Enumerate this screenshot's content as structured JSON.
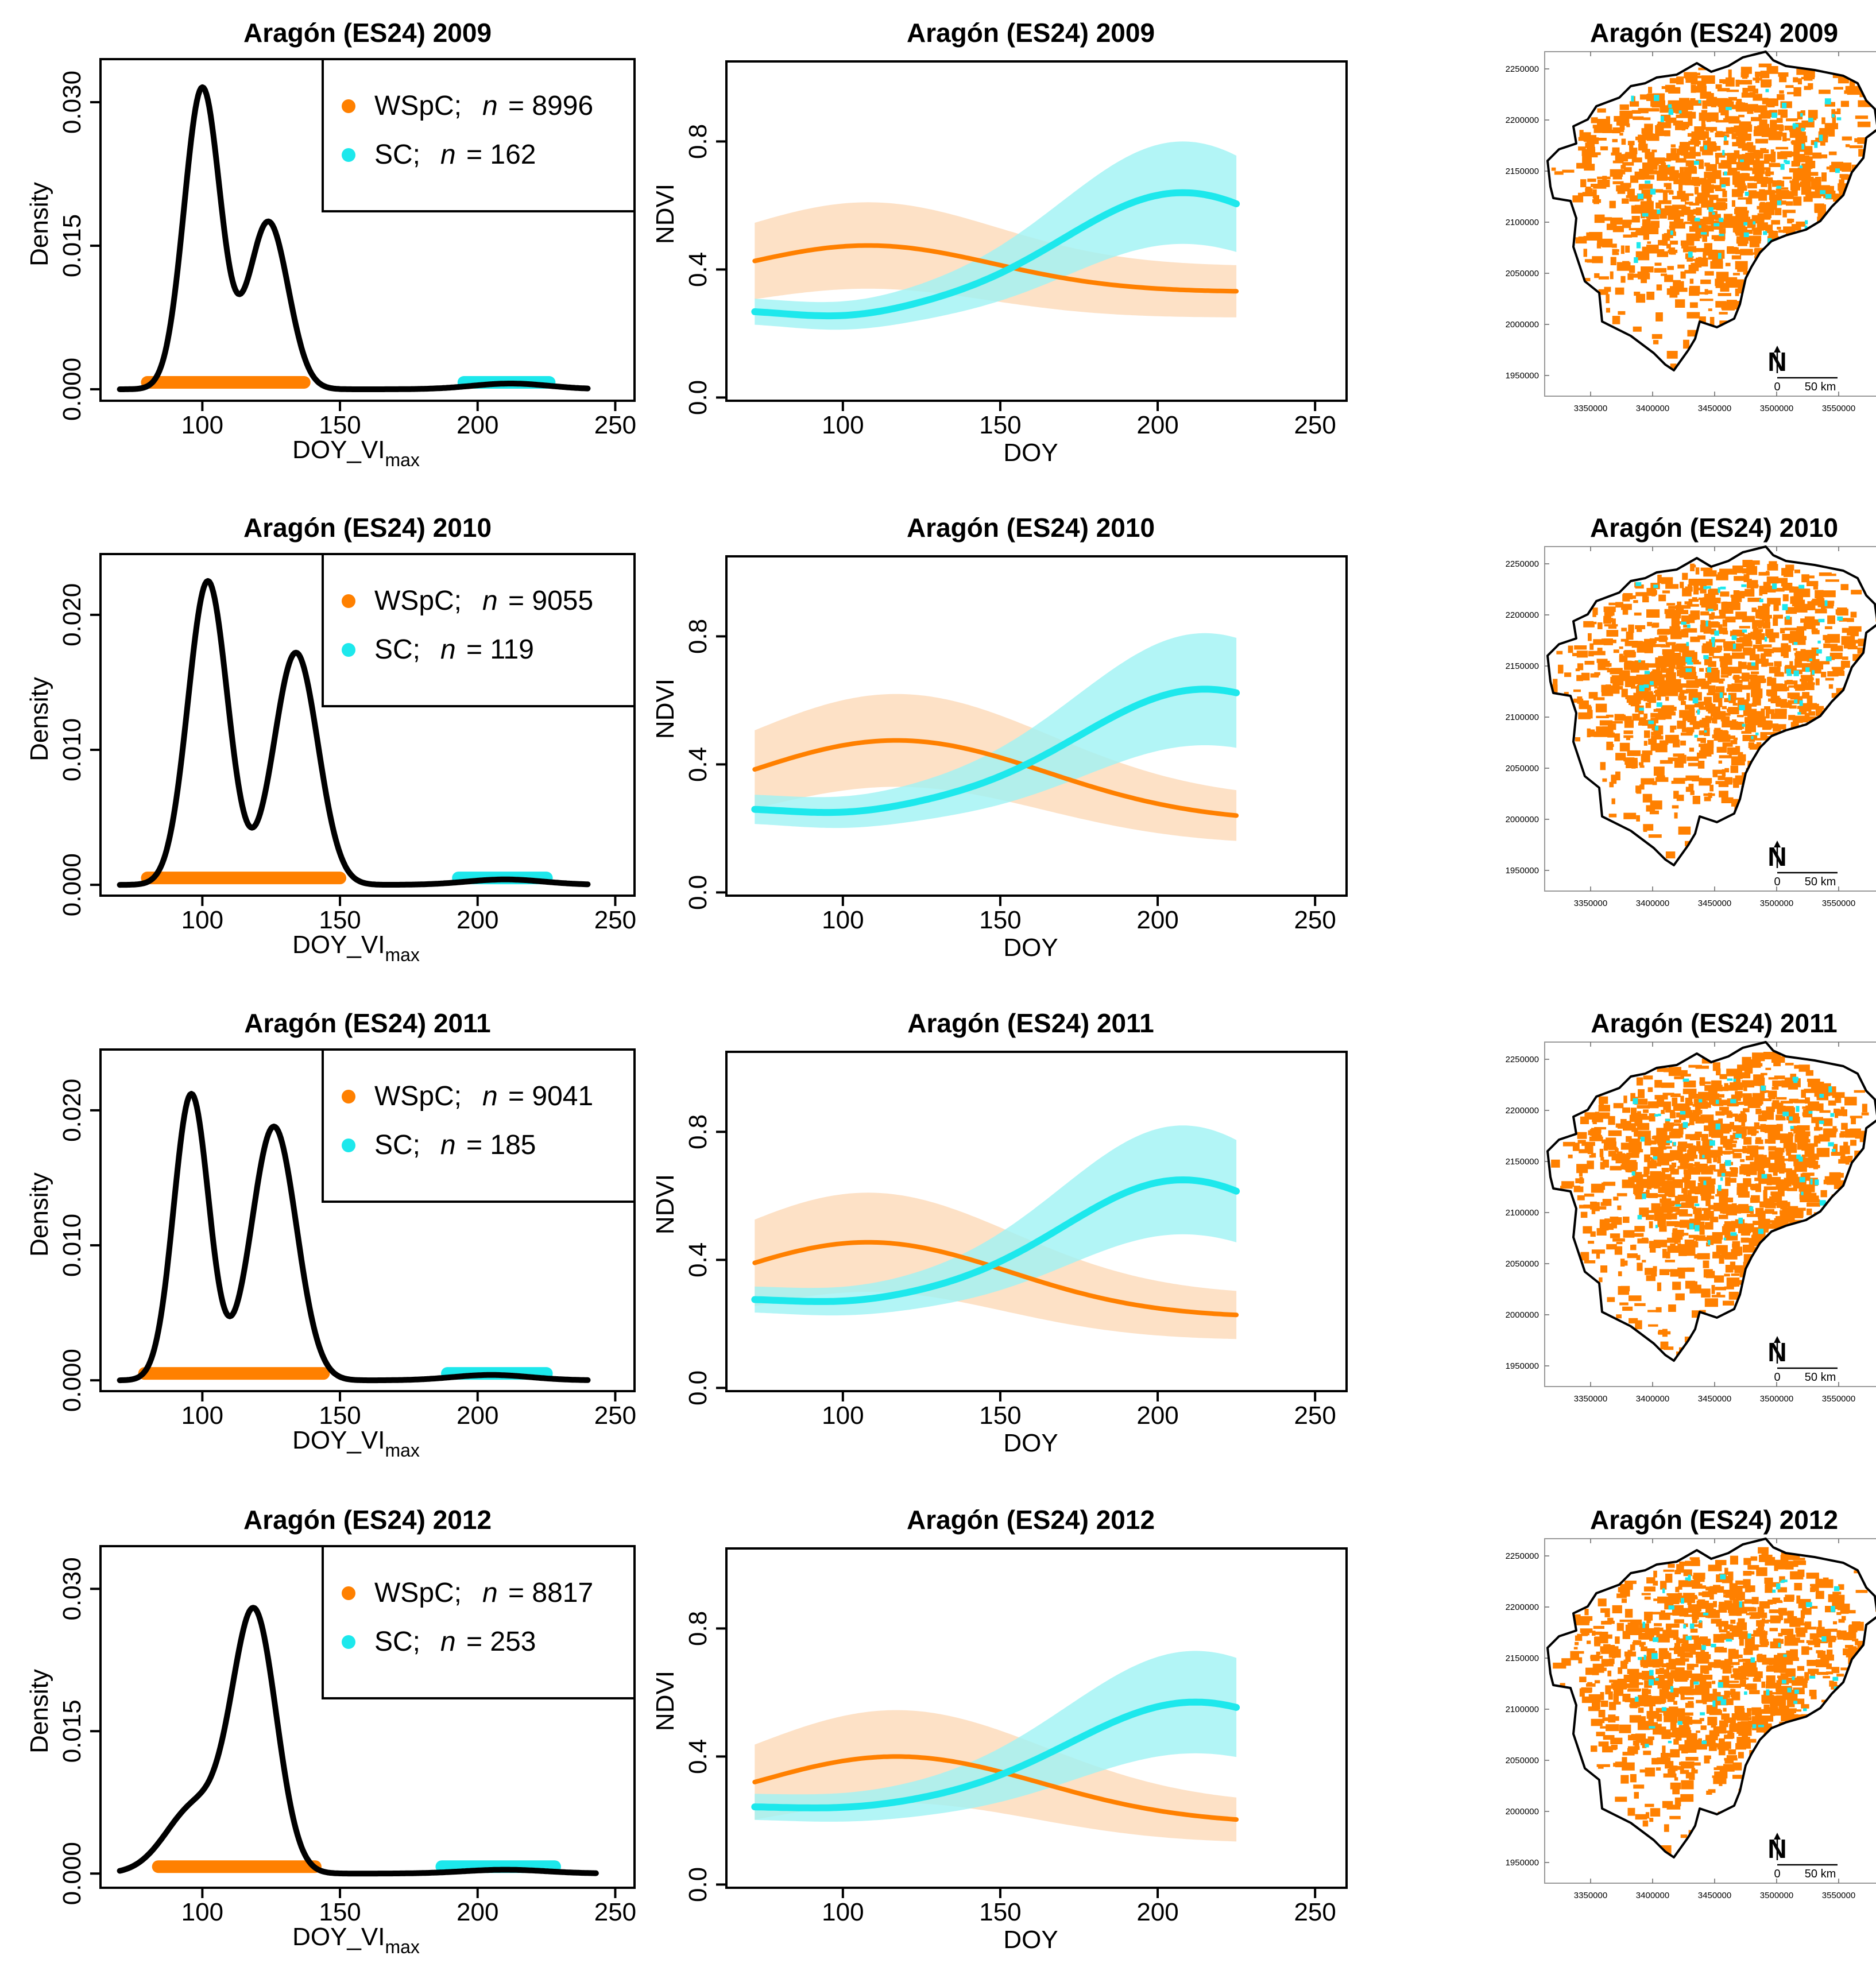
{
  "colors": {
    "wspc": "#ff8000",
    "sc": "#1de8ec",
    "wspc_band": "#fcd9b8",
    "sc_band": "#9ff3f4",
    "axis": "#000000"
  },
  "chart_data": [
    {
      "type": "line",
      "panel": "density",
      "title": "Aragón (ES24) 2009",
      "ylabel": "Density",
      "xlabel": "DOY_VI",
      "xlabel_sub": "max",
      "xlim": [
        63,
        257
      ],
      "ylim": [
        -0.0012,
        0.0345
      ],
      "xticks": [
        "100",
        "150",
        "200",
        "250"
      ],
      "yticks": [
        "0.000",
        "0.015",
        "0.030"
      ],
      "legend": [
        {
          "label": "WSpC;",
          "n_text": "n",
          "eq_text": "= 8996",
          "n": 8996
        },
        {
          "label": "SC;",
          "n_text": "n",
          "eq_text": "= 162",
          "n": 162
        }
      ],
      "density": {
        "x_range": [
          70,
          240
        ],
        "peaks": [
          [
            100,
            0.0315,
            6.6
          ],
          [
            124,
            0.0175,
            7.2
          ],
          [
            212,
            0.0006,
            14
          ]
        ]
      },
      "rug": [
        {
          "series": "WSpC",
          "from": 80,
          "to": 137
        },
        {
          "series": "SC",
          "from": 195,
          "to": 226
        }
      ]
    },
    {
      "type": "line",
      "panel": "ndvi",
      "title": "Aragón (ES24) 2009",
      "ylabel": "NDVI",
      "xlabel": "DOY",
      "xlim": [
        63,
        260
      ],
      "ylim": [
        -0.01,
        1.05
      ],
      "xticks": [
        "100",
        "150",
        "200",
        "250"
      ],
      "yticks": [
        "0.0",
        "0.4",
        "0.8"
      ],
      "series": [
        {
          "name": "WSpC",
          "x_range": [
            72,
            225
          ],
          "base": 0.33,
          "amp": 0.145,
          "center": 108,
          "sigma": 40,
          "band_base": 0.08,
          "band_amp": 0.055
        },
        {
          "name": "SC",
          "x_range": [
            72,
            225
          ],
          "base": 0.275,
          "amp": 0.365,
          "center": 208,
          "sigma": 38,
          "band_base": 0.04,
          "band_amp": 0.12,
          "dip": -0.025,
          "dip_center": 100,
          "dip_sigma": 18
        }
      ]
    },
    {
      "type": "map",
      "panel": "map",
      "title": "Aragón (ES24) 2009",
      "seed": 11,
      "yticks": [
        "2250000",
        "2200000",
        "2150000",
        "2100000",
        "2050000",
        "2000000",
        "1950000"
      ],
      "xticks": [
        "3350000",
        "3400000",
        "3450000",
        "3500000",
        "3550000"
      ],
      "north": "N",
      "scale_labels": [
        "0",
        "50 km"
      ]
    },
    {
      "type": "line",
      "panel": "density",
      "title": "Aragón (ES24) 2010",
      "ylabel": "Density",
      "xlabel": "DOY_VI",
      "xlabel_sub": "max",
      "xlim": [
        63,
        257
      ],
      "ylim": [
        -0.0008,
        0.0245
      ],
      "xticks": [
        "100",
        "150",
        "200",
        "250"
      ],
      "yticks": [
        "0.000",
        "0.010",
        "0.020"
      ],
      "legend": [
        {
          "label": "WSpC;",
          "n_text": "n",
          "eq_text": "= 9055",
          "n": 9055
        },
        {
          "label": "SC;",
          "n_text": "n",
          "eq_text": "= 119",
          "n": 119
        }
      ],
      "density": {
        "x_range": [
          70,
          240
        ],
        "peaks": [
          [
            102,
            0.0225,
            7.2
          ],
          [
            134,
            0.0172,
            8.0
          ],
          [
            210,
            0.0004,
            14
          ]
        ]
      },
      "rug": [
        {
          "series": "WSpC",
          "from": 80,
          "to": 150
        },
        {
          "series": "SC",
          "from": 193,
          "to": 225
        }
      ]
    },
    {
      "type": "line",
      "panel": "ndvi",
      "title": "Aragón (ES24) 2010",
      "ylabel": "NDVI",
      "xlabel": "DOY",
      "xlim": [
        63,
        260
      ],
      "ylim": [
        -0.01,
        1.05
      ],
      "xticks": [
        "100",
        "150",
        "200",
        "250"
      ],
      "yticks": [
        "0.0",
        "0.4",
        "0.8"
      ],
      "series": [
        {
          "name": "WSpC",
          "x_range": [
            72,
            225
          ],
          "base": 0.22,
          "amp": 0.255,
          "center": 117,
          "sigma": 48,
          "band_base": 0.07,
          "band_amp": 0.075
        },
        {
          "name": "SC",
          "x_range": [
            72,
            225
          ],
          "base": 0.265,
          "amp": 0.37,
          "center": 215,
          "sigma": 40,
          "band_base": 0.045,
          "band_amp": 0.13,
          "dip": -0.02,
          "dip_center": 100,
          "dip_sigma": 18
        }
      ]
    },
    {
      "type": "map",
      "panel": "map",
      "title": "Aragón (ES24) 2010",
      "seed": 23,
      "yticks": [
        "2250000",
        "2200000",
        "2150000",
        "2100000",
        "2050000",
        "2000000",
        "1950000"
      ],
      "xticks": [
        "3350000",
        "3400000",
        "3450000",
        "3500000",
        "3550000"
      ],
      "north": "N",
      "scale_labels": [
        "0",
        "50 km"
      ]
    },
    {
      "type": "line",
      "panel": "density",
      "title": "Aragón (ES24) 2011",
      "ylabel": "Density",
      "xlabel": "DOY_VI",
      "xlabel_sub": "max",
      "xlim": [
        63,
        257
      ],
      "ylim": [
        -0.0008,
        0.0245
      ],
      "xticks": [
        "100",
        "150",
        "200",
        "250"
      ],
      "yticks": [
        "0.000",
        "0.010",
        "0.020"
      ],
      "legend": [
        {
          "label": "WSpC;",
          "n_text": "n",
          "eq_text": "= 9041",
          "n": 9041
        },
        {
          "label": "SC;",
          "n_text": "n",
          "eq_text": "= 185",
          "n": 185
        }
      ],
      "density": {
        "x_range": [
          70,
          240
        ],
        "peaks": [
          [
            96,
            0.0212,
            6.4
          ],
          [
            126,
            0.0188,
            8.2
          ],
          [
            205,
            0.0004,
            14
          ]
        ]
      },
      "rug": [
        {
          "series": "WSpC",
          "from": 79,
          "to": 144
        },
        {
          "series": "SC",
          "from": 189,
          "to": 225
        }
      ]
    },
    {
      "type": "line",
      "panel": "ndvi",
      "title": "Aragón (ES24) 2011",
      "ylabel": "NDVI",
      "xlabel": "DOY",
      "xlim": [
        63,
        260
      ],
      "ylim": [
        -0.01,
        1.05
      ],
      "xticks": [
        "100",
        "150",
        "200",
        "250"
      ],
      "yticks": [
        "0.0",
        "0.4",
        "0.8"
      ],
      "series": [
        {
          "name": "WSpC",
          "x_range": [
            72,
            225
          ],
          "base": 0.22,
          "amp": 0.235,
          "center": 108,
          "sigma": 45,
          "band_base": 0.07,
          "band_amp": 0.085
        },
        {
          "name": "SC",
          "x_range": [
            72,
            225
          ],
          "base": 0.28,
          "amp": 0.37,
          "center": 208,
          "sigma": 38,
          "band_base": 0.04,
          "band_amp": 0.13,
          "dip": -0.015,
          "dip_center": 100,
          "dip_sigma": 18
        }
      ]
    },
    {
      "type": "map",
      "panel": "map",
      "title": "Aragón (ES24) 2011",
      "seed": 37,
      "yticks": [
        "2250000",
        "2200000",
        "2150000",
        "2100000",
        "2050000",
        "2000000",
        "1950000"
      ],
      "xticks": [
        "3350000",
        "3400000",
        "3450000",
        "3500000",
        "3550000"
      ],
      "north": "N",
      "scale_labels": [
        "0",
        "50 km"
      ]
    },
    {
      "type": "line",
      "panel": "density",
      "title": "Aragón (ES24) 2012",
      "ylabel": "Density",
      "xlabel": "DOY_VI",
      "xlabel_sub": "max",
      "xlim": [
        63,
        257
      ],
      "ylim": [
        -0.0015,
        0.0345
      ],
      "xticks": [
        "100",
        "150",
        "200",
        "250"
      ],
      "yticks": [
        "0.000",
        "0.015",
        "0.030"
      ],
      "legend": [
        {
          "label": "WSpC;",
          "n_text": "n",
          "eq_text": "= 8817",
          "n": 8817
        },
        {
          "label": "SC;",
          "n_text": "n",
          "eq_text": "= 253",
          "n": 253
        }
      ],
      "density": {
        "x_range": [
          70,
          243
        ],
        "peaks": [
          [
            119,
            0.0268,
            8.0
          ],
          [
            98,
            0.0072,
            11
          ],
          [
            210,
            0.0004,
            15
          ]
        ]
      },
      "rug": [
        {
          "series": "WSpC",
          "from": 84,
          "to": 141
        },
        {
          "series": "SC",
          "from": 187,
          "to": 228
        }
      ]
    },
    {
      "type": "line",
      "panel": "ndvi",
      "title": "Aragón (ES24) 2012",
      "ylabel": "NDVI",
      "xlabel": "DOY",
      "xlim": [
        63,
        260
      ],
      "ylim": [
        -0.01,
        1.05
      ],
      "xticks": [
        "100",
        "150",
        "200",
        "250"
      ],
      "yticks": [
        "0.0",
        "0.4",
        "0.8"
      ],
      "series": [
        {
          "name": "WSpC",
          "x_range": [
            72,
            225
          ],
          "base": 0.19,
          "amp": 0.21,
          "center": 117,
          "sigma": 46,
          "band_base": 0.06,
          "band_amp": 0.085
        },
        {
          "name": "SC",
          "x_range": [
            72,
            225
          ],
          "base": 0.245,
          "amp": 0.325,
          "center": 212,
          "sigma": 40,
          "band_base": 0.04,
          "band_amp": 0.12,
          "dip": -0.01,
          "dip_center": 100,
          "dip_sigma": 18
        }
      ]
    },
    {
      "type": "map",
      "panel": "map",
      "title": "Aragón (ES24) 2012",
      "seed": 53,
      "yticks": [
        "2250000",
        "2200000",
        "2150000",
        "2100000",
        "2050000",
        "2000000",
        "1950000"
      ],
      "xticks": [
        "3350000",
        "3400000",
        "3450000",
        "3500000",
        "3550000"
      ],
      "north": "N",
      "scale_labels": [
        "0",
        "50 km"
      ]
    }
  ]
}
